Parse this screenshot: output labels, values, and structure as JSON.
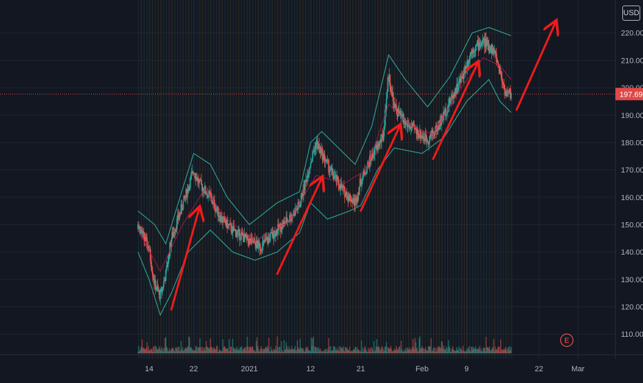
{
  "chart_data": {
    "type": "line",
    "series_type": "candlestick with bollinger bands",
    "y_axis": {
      "min": 103,
      "max": 228,
      "ticks": [
        110,
        120,
        130,
        140,
        150,
        160,
        170,
        180,
        190,
        200,
        210,
        220
      ],
      "tick_labels": [
        "110.00",
        "120.00",
        "130.00",
        "140.00",
        "150.00",
        "160.00",
        "170.00",
        "180.00",
        "190.00",
        "200.00",
        "210.00",
        "220.00"
      ]
    },
    "x_axis": {
      "start": "2020-12-12",
      "end": "2021-03-05",
      "ticks": [
        {
          "date": "2020-12-14",
          "label": "14"
        },
        {
          "date": "2020-12-22",
          "label": "22"
        },
        {
          "date": "2021-01-01",
          "label": "2021"
        },
        {
          "date": "2021-01-12",
          "label": "12"
        },
        {
          "date": "2021-01-21",
          "label": "21"
        },
        {
          "date": "2021-02-01",
          "label": "Feb"
        },
        {
          "date": "2021-02-09",
          "label": "9"
        },
        {
          "date": "2021-02-22",
          "label": "22"
        },
        {
          "date": "2021-03-01",
          "label": "Mar"
        }
      ]
    },
    "price_path": [
      [
        "2020-12-12",
        150
      ],
      [
        "2020-12-14",
        141
      ],
      [
        "2020-12-15",
        128
      ],
      [
        "2020-12-16",
        124
      ],
      [
        "2020-12-17",
        132
      ],
      [
        "2020-12-18",
        145
      ],
      [
        "2020-12-20",
        157
      ],
      [
        "2020-12-22",
        170
      ],
      [
        "2020-12-23",
        165
      ],
      [
        "2020-12-25",
        160
      ],
      [
        "2020-12-27",
        152
      ],
      [
        "2020-12-29",
        148
      ],
      [
        "2021-01-01",
        144
      ],
      [
        "2021-01-03",
        142
      ],
      [
        "2021-01-05",
        146
      ],
      [
        "2021-01-08",
        152
      ],
      [
        "2021-01-10",
        157
      ],
      [
        "2021-01-12",
        173
      ],
      [
        "2021-01-13",
        180
      ],
      [
        "2021-01-14",
        176
      ],
      [
        "2021-01-16",
        168
      ],
      [
        "2021-01-18",
        162
      ],
      [
        "2021-01-20",
        158
      ],
      [
        "2021-01-21",
        166
      ],
      [
        "2021-01-23",
        175
      ],
      [
        "2021-01-25",
        182
      ],
      [
        "2021-01-26",
        205
      ],
      [
        "2021-01-27",
        193
      ],
      [
        "2021-01-29",
        187
      ],
      [
        "2021-01-31",
        184
      ],
      [
        "2021-02-02",
        181
      ],
      [
        "2021-02-04",
        186
      ],
      [
        "2021-02-06",
        195
      ],
      [
        "2021-02-08",
        203
      ],
      [
        "2021-02-10",
        214
      ],
      [
        "2021-02-12",
        217
      ],
      [
        "2021-02-14",
        213
      ],
      [
        "2021-02-15",
        206
      ],
      [
        "2021-02-16",
        198
      ],
      [
        "2021-02-17",
        197.69
      ]
    ],
    "bollinger_upper": [
      [
        "2020-12-12",
        155
      ],
      [
        "2020-12-15",
        150
      ],
      [
        "2020-12-17",
        143
      ],
      [
        "2020-12-20",
        163
      ],
      [
        "2020-12-22",
        176
      ],
      [
        "2020-12-25",
        172
      ],
      [
        "2020-12-28",
        160
      ],
      [
        "2021-01-01",
        150
      ],
      [
        "2021-01-06",
        158
      ],
      [
        "2021-01-10",
        162
      ],
      [
        "2021-01-12",
        180
      ],
      [
        "2021-01-14",
        184
      ],
      [
        "2021-01-17",
        178
      ],
      [
        "2021-01-20",
        172
      ],
      [
        "2021-01-23",
        186
      ],
      [
        "2021-01-26",
        212
      ],
      [
        "2021-01-29",
        203
      ],
      [
        "2021-02-02",
        193
      ],
      [
        "2021-02-06",
        204
      ],
      [
        "2021-02-10",
        220
      ],
      [
        "2021-02-13",
        222
      ],
      [
        "2021-02-17",
        219
      ]
    ],
    "bollinger_lower": [
      [
        "2020-12-12",
        140
      ],
      [
        "2020-12-14",
        130
      ],
      [
        "2020-12-16",
        117
      ],
      [
        "2020-12-18",
        125
      ],
      [
        "2020-12-21",
        140
      ],
      [
        "2020-12-25",
        148
      ],
      [
        "2020-12-29",
        140
      ],
      [
        "2021-01-02",
        137
      ],
      [
        "2021-01-06",
        140
      ],
      [
        "2021-01-10",
        147
      ],
      [
        "2021-01-12",
        158
      ],
      [
        "2021-01-15",
        152
      ],
      [
        "2021-01-19",
        155
      ],
      [
        "2021-01-21",
        157
      ],
      [
        "2021-01-24",
        170
      ],
      [
        "2021-01-27",
        178
      ],
      [
        "2021-02-01",
        176
      ],
      [
        "2021-02-05",
        182
      ],
      [
        "2021-02-09",
        195
      ],
      [
        "2021-02-13",
        203
      ],
      [
        "2021-02-15",
        195
      ],
      [
        "2021-02-17",
        191
      ]
    ],
    "moving_average": [
      [
        "2020-12-12",
        148
      ],
      [
        "2020-12-16",
        133
      ],
      [
        "2020-12-20",
        150
      ],
      [
        "2020-12-24",
        163
      ],
      [
        "2020-12-28",
        152
      ],
      [
        "2021-01-02",
        144
      ],
      [
        "2021-01-08",
        151
      ],
      [
        "2021-01-13",
        168
      ],
      [
        "2021-01-18",
        165
      ],
      [
        "2021-01-22",
        170
      ],
      [
        "2021-01-26",
        194
      ],
      [
        "2021-01-30",
        186
      ],
      [
        "2021-02-03",
        183
      ],
      [
        "2021-02-08",
        200
      ],
      [
        "2021-02-12",
        211
      ],
      [
        "2021-02-15",
        208
      ],
      [
        "2021-02-17",
        203
      ]
    ],
    "trend_arrows": [
      {
        "from": [
          "2020-12-18",
          119
        ],
        "to": [
          "2020-12-23",
          156
        ]
      },
      {
        "from": [
          "2021-01-06",
          132
        ],
        "to": [
          "2021-01-14",
          167
        ]
      },
      {
        "from": [
          "2021-01-21",
          155
        ],
        "to": [
          "2021-01-28",
          186
        ]
      },
      {
        "from": [
          "2021-02-03",
          174
        ],
        "to": [
          "2021-02-11",
          209
        ]
      },
      {
        "from": [
          "2021-02-18",
          192
        ],
        "to": [
          "2021-02-25",
          224
        ]
      }
    ],
    "last_price": 197.69,
    "last_price_label": "197.69",
    "earnings_marker": {
      "date": "2021-02-27",
      "label": "E"
    }
  },
  "header": {
    "currency": "USD"
  },
  "colors": {
    "background": "#131722",
    "grid": "#1f2433",
    "up": "#26a69a",
    "down": "#ef5350",
    "band": "#2f9d92",
    "ma": "#c2185b",
    "arrow": "#f01b1b",
    "price_line": "#e04848",
    "axis_text": "#b2b5be"
  }
}
